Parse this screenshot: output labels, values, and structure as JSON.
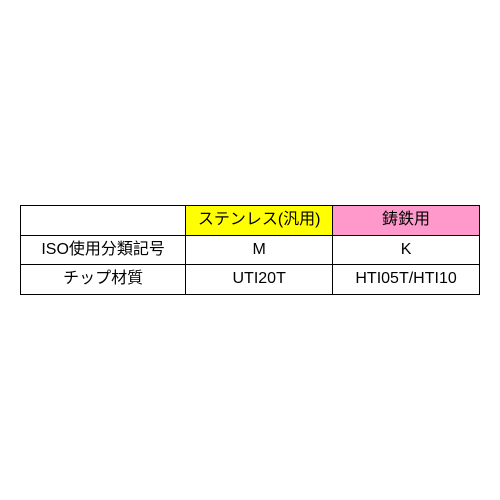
{
  "table": {
    "columns": [
      {
        "label": "",
        "bg": "#ffffff"
      },
      {
        "label": "ステンレス(汎用)",
        "bg": "#ffff00"
      },
      {
        "label": "鋳鉄用",
        "bg": "#ff99cc"
      }
    ],
    "rows": [
      {
        "label": "ISO使用分類記号",
        "cells": [
          "M",
          "K"
        ]
      },
      {
        "label": "チップ材質",
        "cells": [
          "UTI20T",
          "HTI05T/HTI10"
        ]
      }
    ],
    "border_color": "#000000",
    "text_color": "#000000",
    "font_size": 16
  }
}
